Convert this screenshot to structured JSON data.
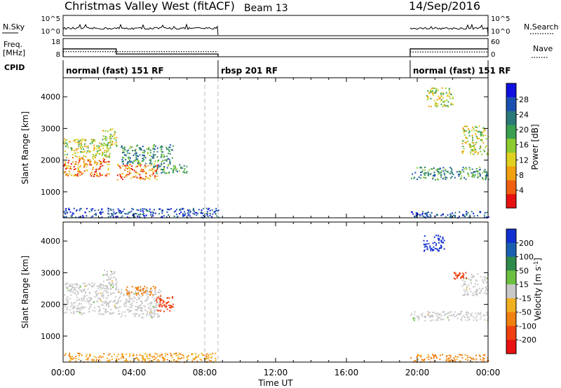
{
  "header": {
    "station": "Christmas Valley West (fitACF)",
    "beam": "Beam 13",
    "date": "14/Sep/2016"
  },
  "panels": {
    "nsky_label": "N.Sky",
    "nsearch_label": "N.Search",
    "nsky_ticks": [
      "10^5",
      "10^0"
    ],
    "freq_label_1": "Freq.",
    "freq_label_2": "[MHz]",
    "freq_ticks": [
      "18",
      "8"
    ],
    "nave_label": "Nave",
    "nave_ticks": [
      "60",
      "0"
    ],
    "cpid_label": "CPID",
    "cpid_segments": [
      {
        "label": "normal (fast) 151 RF",
        "start": 0.0
      },
      {
        "label": "rbsp 201 RF",
        "start": 8.75
      },
      {
        "label": "normal (fast) 151 RF",
        "start": 19.6
      }
    ]
  },
  "axes": {
    "ylabel": "Slant Range [km]",
    "xlabel": "Time UT",
    "x_ticks": [
      "00:00",
      "04:00",
      "08:00",
      "12:00",
      "16:00",
      "20:00",
      "00:00"
    ],
    "y_ticks": [
      "1000",
      "2000",
      "3000",
      "4000"
    ]
  },
  "chart_data": [
    {
      "type": "heatmap",
      "name": "power",
      "colorbar_label": "Power [dB]",
      "colorbar_ticks": [
        "4",
        "8",
        "12",
        "16",
        "20",
        "24",
        "28"
      ],
      "colorbar_colors": [
        "#1010e0",
        "#1a50b0",
        "#2a7878",
        "#3aa050",
        "#8ccc30",
        "#e0d020",
        "#f0a010",
        "#f06010",
        "#e81010"
      ],
      "xlim": [
        0,
        24
      ],
      "ylim": [
        180,
        4600
      ],
      "data_gaps": [
        [
          8.75,
          19.6
        ]
      ],
      "dashed_lines_hours": [
        8.0,
        8.75
      ],
      "regions": [
        {
          "t": [
            0.0,
            2.6
          ],
          "r": [
            1500,
            2100
          ],
          "level": "high"
        },
        {
          "t": [
            0.0,
            2.6
          ],
          "r": [
            2100,
            2700
          ],
          "level": "mid"
        },
        {
          "t": [
            2.2,
            3.0
          ],
          "r": [
            2400,
            3000
          ],
          "level": "mid"
        },
        {
          "t": [
            3.0,
            5.3
          ],
          "r": [
            1400,
            1900
          ],
          "level": "high"
        },
        {
          "t": [
            3.2,
            6.2
          ],
          "r": [
            1900,
            2500
          ],
          "level": "low"
        },
        {
          "t": [
            5.0,
            7.0
          ],
          "r": [
            1600,
            1900
          ],
          "level": "low"
        },
        {
          "t": [
            0.0,
            8.75
          ],
          "r": [
            200,
            500
          ],
          "level": "lowest"
        },
        {
          "t": [
            19.6,
            24.0
          ],
          "r": [
            1400,
            1800
          ],
          "level": "low"
        },
        {
          "t": [
            19.6,
            24.0
          ],
          "r": [
            200,
            400
          ],
          "level": "lowest"
        },
        {
          "t": [
            20.5,
            22.0
          ],
          "r": [
            3700,
            4300
          ],
          "level": "mid"
        },
        {
          "t": [
            22.5,
            24.0
          ],
          "r": [
            2200,
            3100
          ],
          "level": "mid"
        }
      ]
    },
    {
      "type": "heatmap",
      "name": "velocity",
      "colorbar_label": "Velocity [m s^-1]",
      "colorbar_ticks": [
        "200",
        "100",
        "50",
        "15",
        "-15",
        "-50",
        "-100",
        "-200"
      ],
      "colorbar_colors": [
        "#1030d0",
        "#1a60b0",
        "#2e8a4a",
        "#6cc040",
        "#c8c8c8",
        "#f0b020",
        "#f08010",
        "#f04010",
        "#e81010"
      ],
      "xlim": [
        0,
        24
      ],
      "ylim": [
        180,
        4600
      ],
      "data_gaps": [
        [
          8.75,
          19.6
        ]
      ],
      "dashed_lines_hours": [
        8.0,
        8.75
      ],
      "regions": [
        {
          "t": [
            0.0,
            3.0
          ],
          "r": [
            1700,
            2700
          ],
          "v": 0
        },
        {
          "t": [
            2.2,
            3.0
          ],
          "r": [
            2500,
            3100
          ],
          "v": 0
        },
        {
          "t": [
            3.0,
            5.5
          ],
          "r": [
            1600,
            2500
          ],
          "v": 0
        },
        {
          "t": [
            5.2,
            6.2
          ],
          "r": [
            1800,
            2300
          ],
          "v": -100
        },
        {
          "t": [
            3.5,
            5.2
          ],
          "r": [
            2300,
            2600
          ],
          "v": -50
        },
        {
          "t": [
            0.0,
            8.75
          ],
          "r": [
            200,
            480
          ],
          "v": -30
        },
        {
          "t": [
            19.6,
            24.0
          ],
          "r": [
            1500,
            1800
          ],
          "v": 0
        },
        {
          "t": [
            22.5,
            24.0
          ],
          "r": [
            2300,
            3000
          ],
          "v": 0
        },
        {
          "t": [
            20.3,
            21.5
          ],
          "r": [
            3700,
            4200
          ],
          "v": 200
        },
        {
          "t": [
            22.0,
            22.8
          ],
          "r": [
            2800,
            3100
          ],
          "v": -100
        },
        {
          "t": [
            19.6,
            24.0
          ],
          "r": [
            200,
            450
          ],
          "v": -40
        }
      ]
    }
  ]
}
